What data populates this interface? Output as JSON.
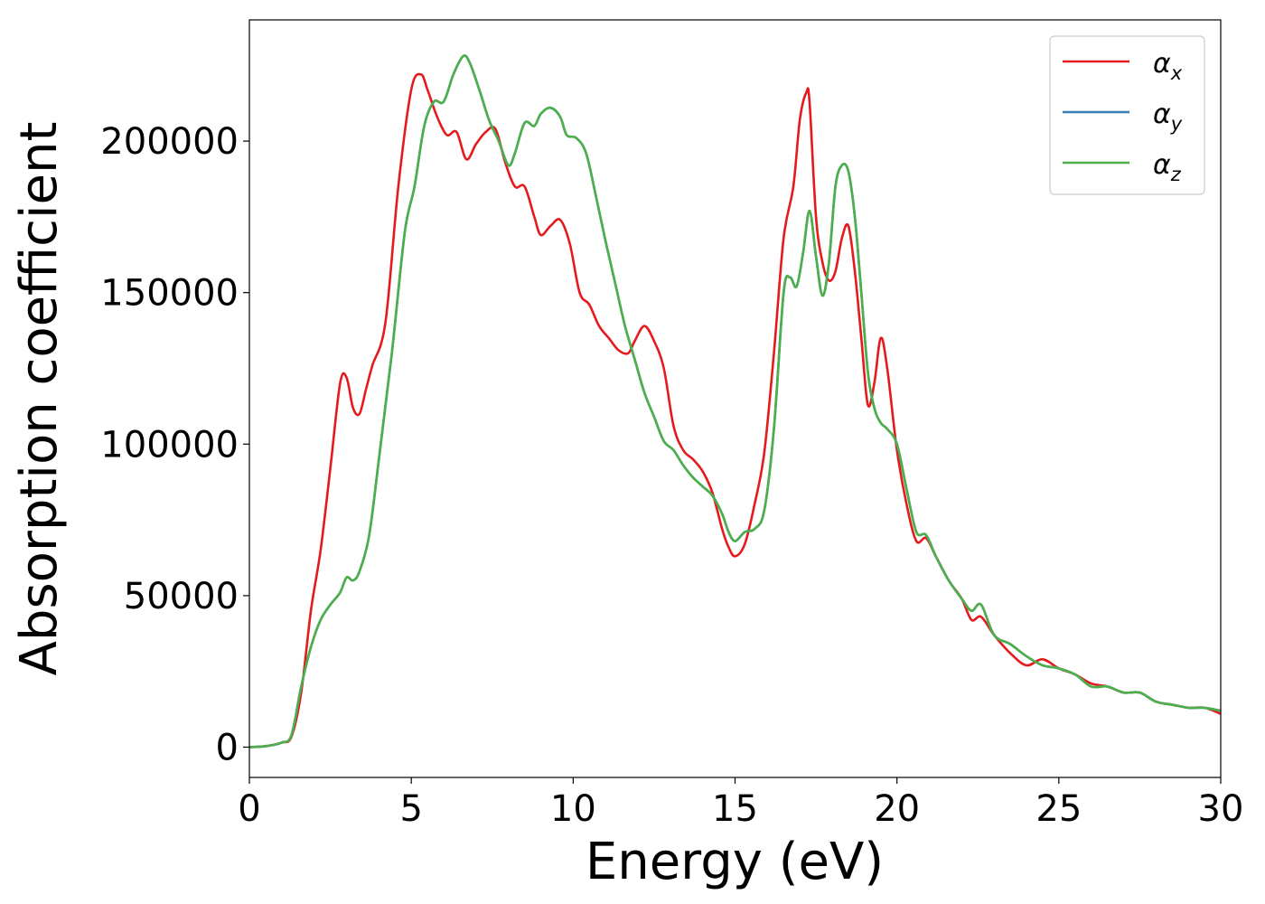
{
  "chart_data": {
    "type": "line",
    "title": "",
    "xlabel": "Energy (eV)",
    "ylabel": "Absorption coefficient",
    "xlim": [
      0,
      30
    ],
    "ylim": [
      -10000,
      240000
    ],
    "xticks": [
      0,
      5,
      10,
      15,
      20,
      25,
      30
    ],
    "xtick_labels": [
      "0",
      "5",
      "10",
      "15",
      "20",
      "25",
      "30"
    ],
    "yticks": [
      0,
      50000,
      100000,
      150000,
      200000
    ],
    "ytick_labels": [
      "0",
      "50000",
      "100000",
      "150000",
      "200000"
    ],
    "grid": false,
    "legend_position": "top-right",
    "series": [
      {
        "name": "α_x",
        "legend_base": "α",
        "legend_sub": "x",
        "color": "#e41a1c",
        "x": [
          0,
          0.5,
          1.0,
          1.3,
          1.6,
          1.9,
          2.2,
          2.5,
          2.8,
          3.0,
          3.2,
          3.4,
          3.6,
          3.8,
          4.2,
          4.6,
          5.0,
          5.3,
          5.5,
          5.8,
          6.1,
          6.4,
          6.7,
          7.0,
          7.3,
          7.6,
          7.9,
          8.2,
          8.5,
          8.8,
          9.0,
          9.3,
          9.6,
          9.9,
          10.2,
          10.5,
          10.8,
          11.1,
          11.4,
          11.7,
          11.9,
          12.2,
          12.5,
          12.8,
          13.1,
          13.4,
          13.7,
          14.0,
          14.3,
          14.6,
          14.8,
          15.0,
          15.3,
          15.6,
          15.9,
          16.2,
          16.5,
          16.8,
          17.0,
          17.2,
          17.3,
          17.5,
          17.7,
          17.9,
          18.1,
          18.3,
          18.5,
          18.7,
          18.9,
          19.1,
          19.3,
          19.5,
          19.7,
          20.0,
          20.3,
          20.6,
          20.9,
          21.2,
          21.6,
          22.0,
          22.3,
          22.6,
          23.0,
          23.5,
          24.0,
          24.5,
          25.0,
          25.5,
          26.0,
          26.5,
          27.0,
          27.5,
          28.0,
          28.5,
          29.0,
          29.5,
          30.0
        ],
        "values": [
          0,
          300,
          1500,
          3500,
          18000,
          45000,
          65000,
          92000,
          120000,
          122000,
          112000,
          110000,
          118000,
          126000,
          140000,
          185000,
          217000,
          222000,
          217000,
          208000,
          202000,
          203000,
          194000,
          199000,
          203000,
          204000,
          193000,
          185000,
          185000,
          175000,
          169000,
          172000,
          174000,
          166000,
          150000,
          146000,
          139000,
          135000,
          131000,
          130000,
          134000,
          139000,
          134000,
          125000,
          106000,
          98000,
          95000,
          91000,
          84000,
          72000,
          66000,
          63000,
          67000,
          80000,
          97000,
          130000,
          168000,
          185000,
          207000,
          216000,
          213000,
          175000,
          160000,
          154000,
          157000,
          168000,
          172000,
          157000,
          135000,
          113000,
          120000,
          135000,
          125000,
          98000,
          80000,
          68000,
          69000,
          63000,
          55000,
          49000,
          42000,
          43000,
          37000,
          31000,
          27000,
          29000,
          26000,
          24000,
          21000,
          20000,
          18000,
          18000,
          15000,
          14000,
          13000,
          13000,
          11000
        ]
      },
      {
        "name": "α_y",
        "legend_base": "α",
        "legend_sub": "y",
        "color": "#377eb8",
        "x": [
          0,
          0.5,
          1.0,
          1.3,
          1.6,
          1.9,
          2.2,
          2.5,
          2.8,
          3.0,
          3.2,
          3.4,
          3.7,
          4.0,
          4.4,
          4.8,
          5.1,
          5.4,
          5.7,
          6.0,
          6.3,
          6.6,
          6.8,
          7.1,
          7.4,
          7.7,
          8.0,
          8.2,
          8.5,
          8.8,
          9.0,
          9.3,
          9.6,
          9.8,
          10.1,
          10.4,
          10.7,
          11.0,
          11.3,
          11.6,
          11.9,
          12.2,
          12.5,
          12.8,
          13.1,
          13.4,
          13.7,
          14.0,
          14.3,
          14.6,
          14.8,
          15.0,
          15.3,
          15.6,
          15.9,
          16.2,
          16.5,
          16.7,
          16.9,
          17.1,
          17.3,
          17.5,
          17.7,
          17.9,
          18.1,
          18.3,
          18.5,
          18.7,
          18.9,
          19.1,
          19.3,
          19.5,
          19.7,
          20.0,
          20.3,
          20.6,
          20.9,
          21.2,
          21.6,
          22.0,
          22.3,
          22.6,
          23.0,
          23.5,
          24.0,
          24.5,
          25.0,
          25.5,
          26.0,
          26.5,
          27.0,
          27.5,
          28.0,
          28.5,
          29.0,
          29.5,
          30.0
        ],
        "values": [
          0,
          300,
          1500,
          4000,
          20000,
          33000,
          42000,
          47000,
          51000,
          56000,
          55000,
          58000,
          70000,
          95000,
          130000,
          170000,
          185000,
          205000,
          213000,
          213000,
          222000,
          228000,
          226000,
          217000,
          207000,
          200000,
          192000,
          196000,
          206000,
          205000,
          209000,
          211000,
          208000,
          202000,
          201000,
          196000,
          182000,
          167000,
          153000,
          139000,
          128000,
          117000,
          109000,
          101000,
          98000,
          93000,
          89000,
          86000,
          83000,
          77000,
          71000,
          68000,
          71000,
          72000,
          78000,
          105000,
          150000,
          155000,
          152000,
          163000,
          177000,
          162000,
          149000,
          160000,
          185000,
          192000,
          190000,
          175000,
          150000,
          124000,
          112000,
          107000,
          105000,
          100000,
          85000,
          71000,
          70000,
          63000,
          55000,
          49000,
          45000,
          47000,
          37000,
          34000,
          30000,
          27000,
          26000,
          24000,
          20000,
          20000,
          18000,
          18000,
          15000,
          14000,
          13000,
          13000,
          12000
        ]
      },
      {
        "name": "α_z",
        "legend_base": "α",
        "legend_sub": "z",
        "color": "#4daf4a",
        "x": [
          0,
          0.5,
          1.0,
          1.3,
          1.6,
          1.9,
          2.2,
          2.5,
          2.8,
          3.0,
          3.2,
          3.4,
          3.7,
          4.0,
          4.4,
          4.8,
          5.1,
          5.4,
          5.7,
          6.0,
          6.3,
          6.6,
          6.8,
          7.1,
          7.4,
          7.7,
          8.0,
          8.2,
          8.5,
          8.8,
          9.0,
          9.3,
          9.6,
          9.8,
          10.1,
          10.4,
          10.7,
          11.0,
          11.3,
          11.6,
          11.9,
          12.2,
          12.5,
          12.8,
          13.1,
          13.4,
          13.7,
          14.0,
          14.3,
          14.6,
          14.8,
          15.0,
          15.3,
          15.6,
          15.9,
          16.2,
          16.5,
          16.7,
          16.9,
          17.1,
          17.3,
          17.5,
          17.7,
          17.9,
          18.1,
          18.3,
          18.5,
          18.7,
          18.9,
          19.1,
          19.3,
          19.5,
          19.7,
          20.0,
          20.3,
          20.6,
          20.9,
          21.2,
          21.6,
          22.0,
          22.3,
          22.6,
          23.0,
          23.5,
          24.0,
          24.5,
          25.0,
          25.5,
          26.0,
          26.5,
          27.0,
          27.5,
          28.0,
          28.5,
          29.0,
          29.5,
          30.0
        ],
        "values": [
          0,
          300,
          1500,
          4000,
          20000,
          33000,
          42000,
          47000,
          51000,
          56000,
          55000,
          58000,
          70000,
          95000,
          130000,
          170000,
          185000,
          205000,
          213000,
          213000,
          222000,
          228000,
          226000,
          217000,
          207000,
          200000,
          192000,
          196000,
          206000,
          205000,
          209000,
          211000,
          208000,
          202000,
          201000,
          196000,
          182000,
          167000,
          153000,
          139000,
          128000,
          117000,
          109000,
          101000,
          98000,
          93000,
          89000,
          86000,
          83000,
          77000,
          71000,
          68000,
          71000,
          72000,
          78000,
          105000,
          150000,
          155000,
          152000,
          163000,
          177000,
          162000,
          149000,
          160000,
          185000,
          192000,
          190000,
          175000,
          150000,
          124000,
          112000,
          107000,
          105000,
          100000,
          85000,
          71000,
          70000,
          63000,
          55000,
          49000,
          45000,
          47000,
          37000,
          34000,
          30000,
          27000,
          26000,
          24000,
          20000,
          20000,
          18000,
          18000,
          15000,
          14000,
          13000,
          13000,
          12000
        ]
      }
    ]
  }
}
